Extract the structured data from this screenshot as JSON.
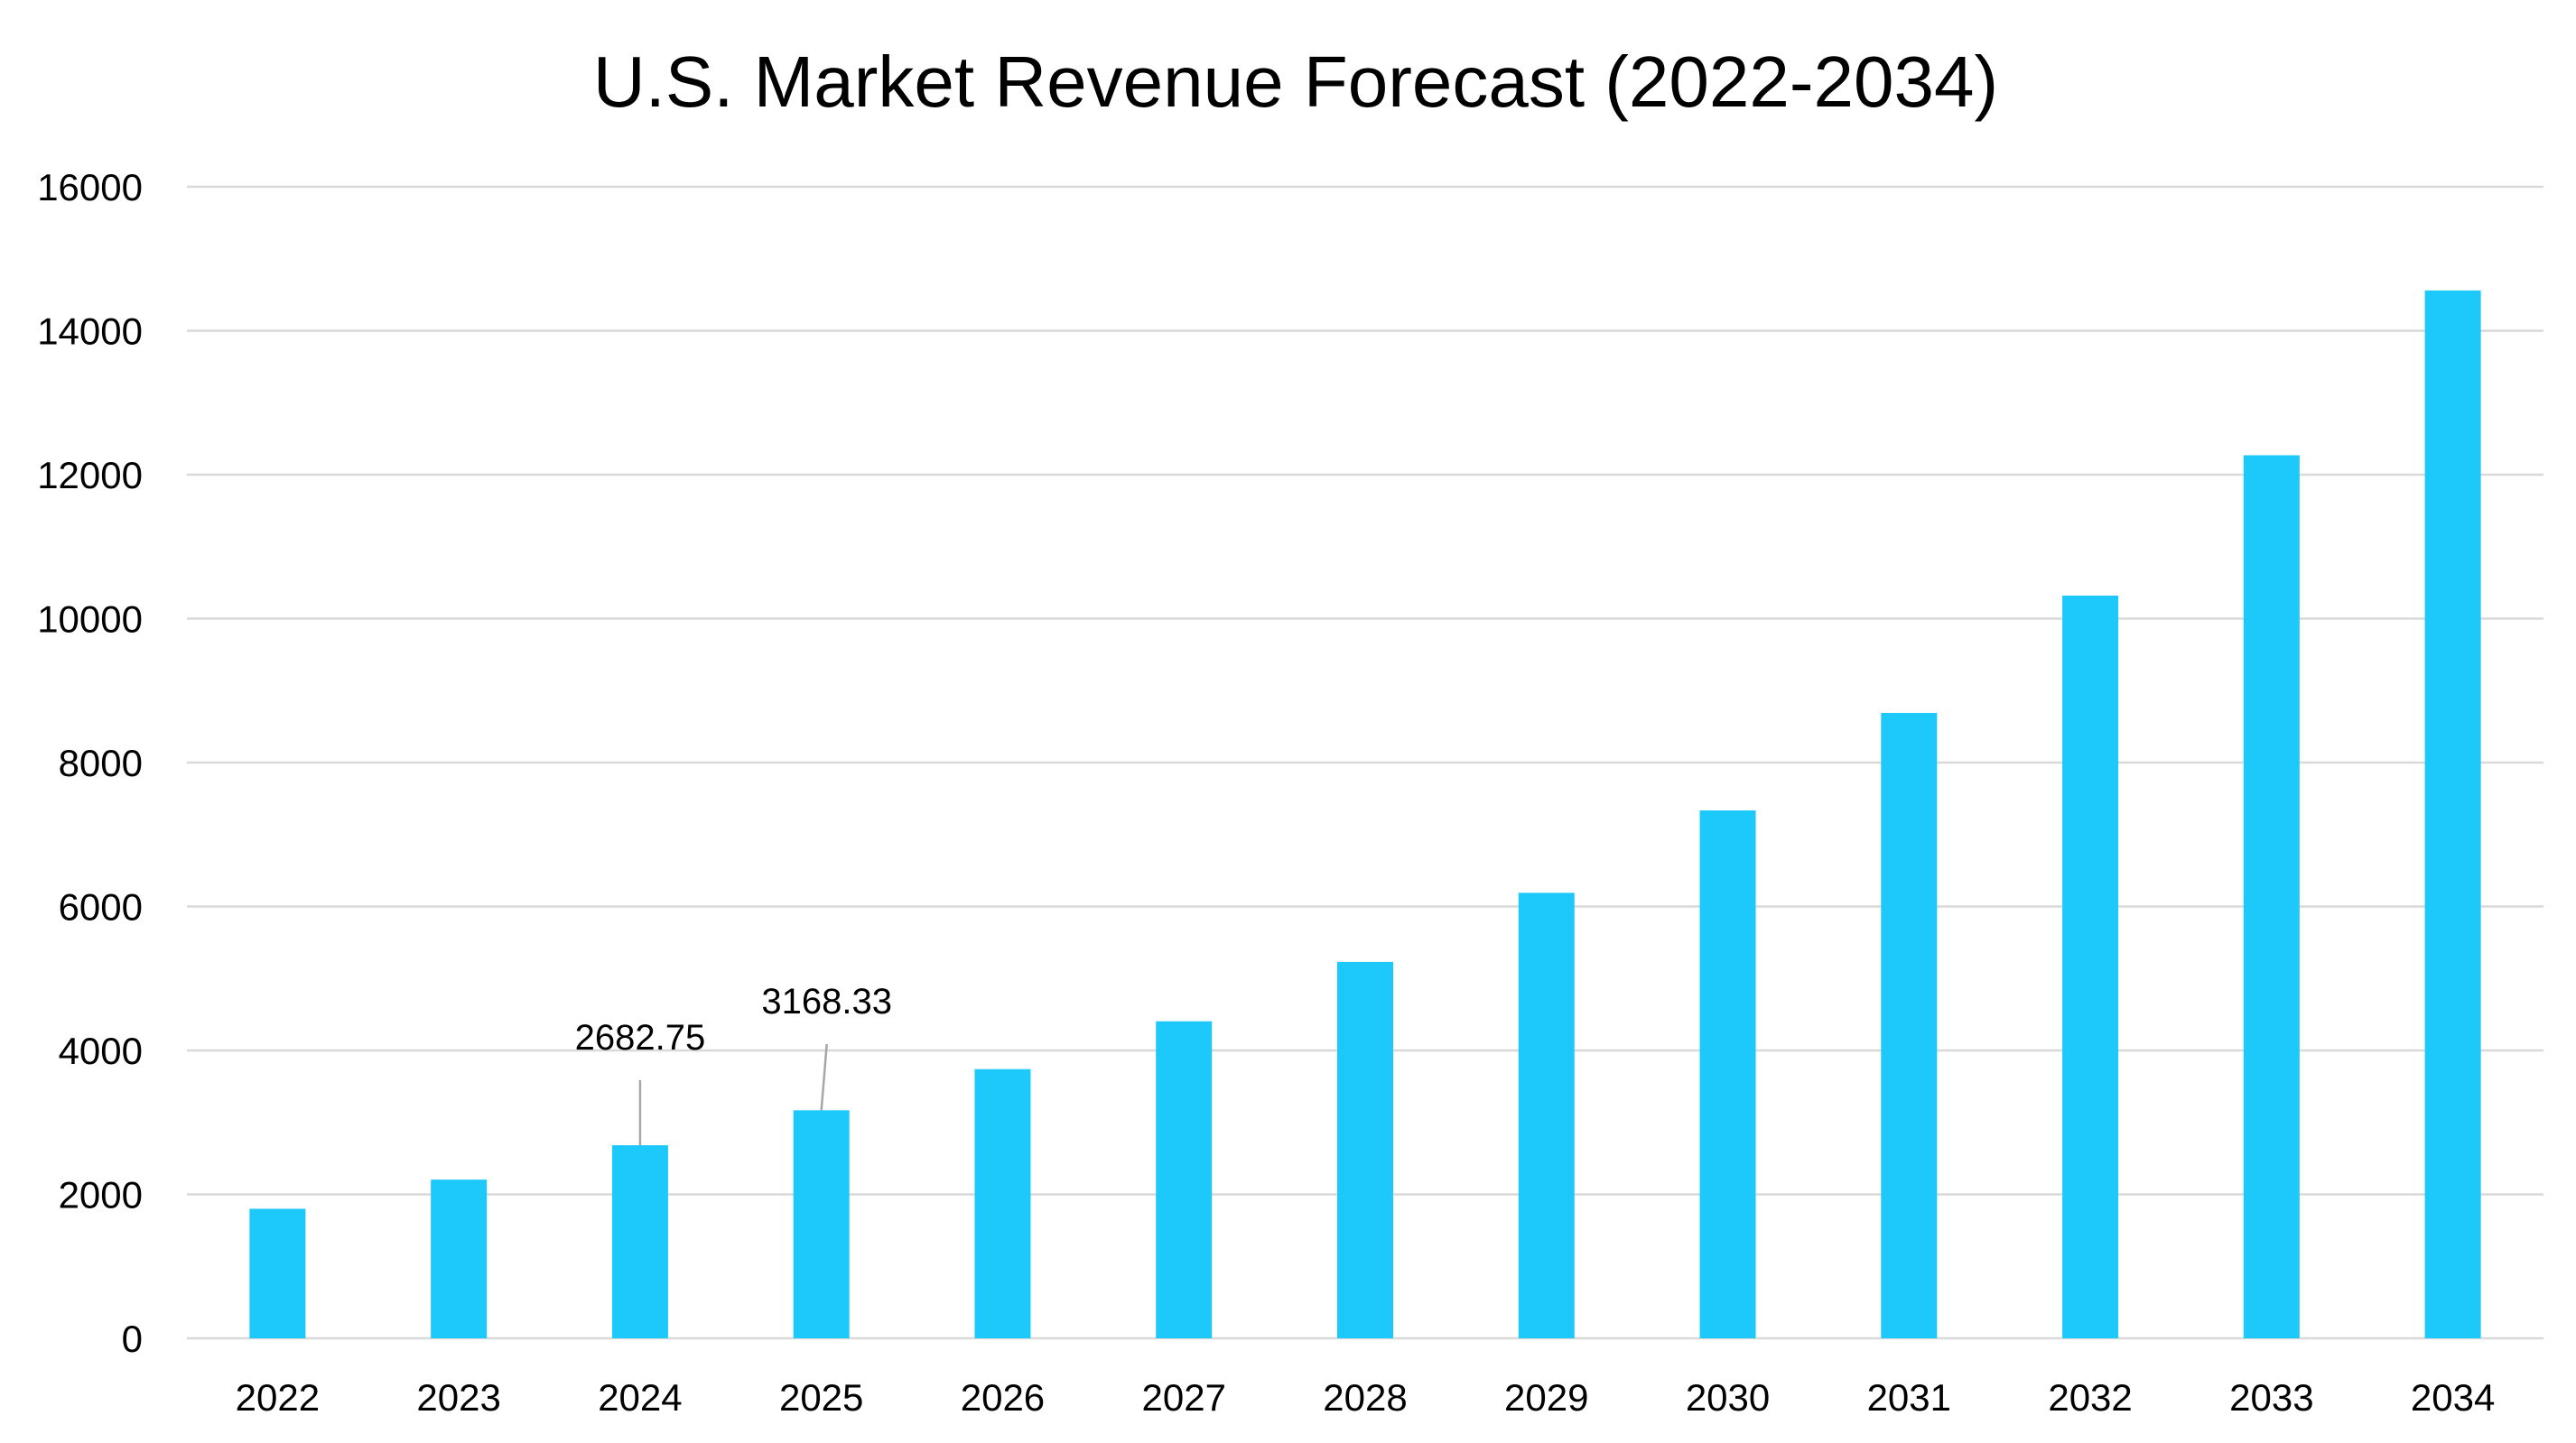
{
  "chart_data": {
    "type": "bar",
    "title": "U.S. Market Revenue Forecast (2022-2034)",
    "xlabel": "",
    "ylabel": "",
    "categories": [
      "2022",
      "2023",
      "2024",
      "2025",
      "2026",
      "2027",
      "2028",
      "2029",
      "2030",
      "2031",
      "2032",
      "2033",
      "2034"
    ],
    "values": [
      1800,
      2205,
      2682.75,
      3168.33,
      3740,
      4405,
      5230,
      6190,
      7335,
      8690,
      10320,
      12270,
      14560
    ],
    "data_labels": {
      "2024": "2682.75",
      "2025": "3168.33"
    },
    "ylim": [
      0,
      16000
    ],
    "yticks": [
      "0",
      "2000",
      "4000",
      "6000",
      "8000",
      "10000",
      "12000",
      "14000",
      "16000"
    ],
    "grid": true,
    "legend": "none",
    "colors": {
      "bar": "#1DC8FB",
      "grid": "#D9D9D9",
      "leader": "#A6A6A6"
    }
  }
}
